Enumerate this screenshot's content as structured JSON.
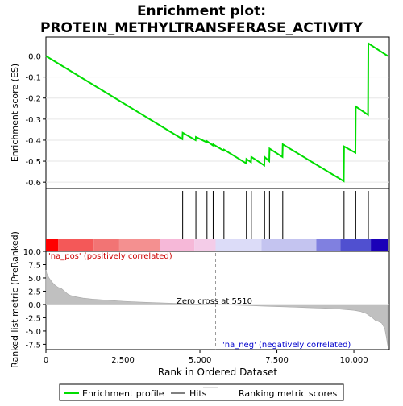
{
  "title_line1": "Enrichment plot:",
  "title_line2": "PROTEIN_METHYLTRANSFERASE_ACTIVITY",
  "top_ylabel": "Enrichment score (ES)",
  "bottom_ylabel": "Ranked list metric (PreRanked)",
  "xlabel": "Rank in Ordered Dataset",
  "pos_label": "'na_pos' (positively correlated)",
  "neg_label": "'na_neg' (negatively correlated)",
  "zero_cross_label": "Zero cross at 5510",
  "legend": {
    "enrichment": "Enrichment profile",
    "hits": "Hits",
    "ranking": "Ranking metric scores"
  },
  "colors": {
    "enrichment_line": "#00dd00",
    "hit_line": "#000000",
    "ranking_fill": "#c0c0c0",
    "pos_text": "#cc0000",
    "neg_text": "#0000cc"
  },
  "chart_data": {
    "type": "line",
    "x_range": [
      0,
      11150
    ],
    "x_ticks": [
      0,
      2500,
      5000,
      7500,
      10000
    ],
    "x_tick_labels": [
      "0",
      "2,500",
      "5,000",
      "7,500",
      "10,000"
    ],
    "es_ylim": [
      -0.63,
      0.09
    ],
    "es_ticks": [
      0.0,
      -0.1,
      -0.2,
      -0.3,
      -0.4,
      -0.5,
      -0.6
    ],
    "es_tick_labels": [
      "0.0",
      "-0.1",
      "-0.2",
      "-0.3",
      "-0.4",
      "-0.5",
      "-0.6"
    ],
    "enrichment_profile": {
      "x": [
        0,
        4430,
        4440,
        4860,
        4870,
        5220,
        5230,
        5420,
        5430,
        5770,
        5780,
        6500,
        6510,
        6660,
        6670,
        7090,
        7100,
        7250,
        7260,
        7680,
        7690,
        9670,
        9680,
        10050,
        10060,
        10460,
        10470,
        11100
      ],
      "y": [
        0.0,
        -0.395,
        -0.365,
        -0.4,
        -0.385,
        -0.41,
        -0.405,
        -0.425,
        -0.42,
        -0.45,
        -0.445,
        -0.51,
        -0.49,
        -0.505,
        -0.48,
        -0.52,
        -0.48,
        -0.5,
        -0.44,
        -0.48,
        -0.42,
        -0.595,
        -0.43,
        -0.46,
        -0.24,
        -0.28,
        0.06,
        0.0
      ]
    },
    "hits": [
      4440,
      4870,
      5230,
      5430,
      5780,
      6510,
      6670,
      7100,
      7260,
      7690,
      9680,
      10060,
      10470
    ],
    "rank_ylim": [
      -8.5,
      10.0
    ],
    "rank_ticks": [
      10.0,
      7.5,
      5.0,
      2.5,
      0.0,
      -2.5,
      -5.0,
      -7.5
    ],
    "rank_tick_labels": [
      "10.0",
      "7.5",
      "5.0",
      "2.5",
      "0.0",
      "-2.5",
      "-5.0",
      "-7.5"
    ],
    "ranking_metric": {
      "x": [
        0,
        30,
        100,
        200,
        300,
        400,
        500,
        600,
        700,
        800,
        1000,
        1200,
        1500,
        2000,
        2500,
        3000,
        3500,
        4000,
        4500,
        5000,
        5510,
        6000,
        6500,
        7000,
        7500,
        8000,
        8500,
        9000,
        9500,
        9800,
        10000,
        10200,
        10400,
        10600,
        10700,
        10800,
        10900,
        11000,
        11050,
        11100
      ],
      "y": [
        6.5,
        5.8,
        5.0,
        4.2,
        3.6,
        3.2,
        3.0,
        2.5,
        2.0,
        1.7,
        1.4,
        1.2,
        1.0,
        0.8,
        0.6,
        0.45,
        0.35,
        0.25,
        0.15,
        0.08,
        0.0,
        -0.1,
        -0.2,
        -0.3,
        -0.4,
        -0.5,
        -0.6,
        -0.7,
        -0.85,
        -1.0,
        -1.1,
        -1.3,
        -1.7,
        -2.5,
        -3.0,
        -3.2,
        -3.5,
        -4.5,
        -6.0,
        -7.8
      ]
    },
    "zero_cross": 5510,
    "heatmap_segments": [
      {
        "x0": 0,
        "x1": 400,
        "color": "#ff0000"
      },
      {
        "x0": 400,
        "x1": 1550,
        "color": "#f45858"
      },
      {
        "x0": 1550,
        "x1": 2380,
        "color": "#f27474"
      },
      {
        "x0": 2380,
        "x1": 3700,
        "color": "#f49090"
      },
      {
        "x0": 3700,
        "x1": 4820,
        "color": "#f6b8d8"
      },
      {
        "x0": 4820,
        "x1": 5510,
        "color": "#f4cce8"
      },
      {
        "x0": 5510,
        "x1": 7000,
        "color": "#dcdcf8"
      },
      {
        "x0": 7000,
        "x1": 8780,
        "color": "#c4c4f0"
      },
      {
        "x0": 8780,
        "x1": 9560,
        "color": "#8080e0"
      },
      {
        "x0": 9560,
        "x1": 10550,
        "color": "#5050d0"
      },
      {
        "x0": 10550,
        "x1": 11100,
        "color": "#1a00b8"
      }
    ]
  }
}
